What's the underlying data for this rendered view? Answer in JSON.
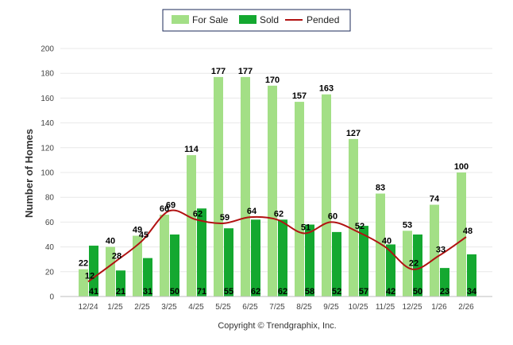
{
  "chart_data": {
    "type": "bar",
    "categories": [
      "12/24",
      "1/25",
      "2/25",
      "3/25",
      "4/25",
      "5/25",
      "6/25",
      "7/25",
      "8/25",
      "9/25",
      "10/25",
      "11/25",
      "12/25",
      "1/26",
      "2/26"
    ],
    "series": [
      {
        "name": "For Sale",
        "kind": "bar",
        "color": "#a3df86",
        "values": [
          22,
          40,
          49,
          66,
          114,
          177,
          177,
          170,
          157,
          163,
          127,
          83,
          53,
          74,
          100
        ]
      },
      {
        "name": "Sold",
        "kind": "bar",
        "color": "#14a830",
        "values": [
          41,
          21,
          31,
          50,
          71,
          55,
          62,
          62,
          58,
          52,
          57,
          42,
          50,
          23,
          34
        ]
      },
      {
        "name": "Pended",
        "kind": "line",
        "color": "#b11212",
        "values": [
          12,
          28,
          45,
          69,
          62,
          59,
          64,
          62,
          51,
          60,
          52,
          40,
          22,
          33,
          48
        ]
      }
    ],
    "title": "",
    "xlabel": "",
    "ylabel": "Number of Homes",
    "ylim": [
      0,
      200
    ],
    "yticks": [
      0,
      20,
      40,
      60,
      80,
      100,
      120,
      140,
      160,
      180,
      200
    ],
    "grid": true,
    "legend_position": "top-center"
  },
  "footer": {
    "copyright": "Copyright © Trendgraphix, Inc."
  }
}
